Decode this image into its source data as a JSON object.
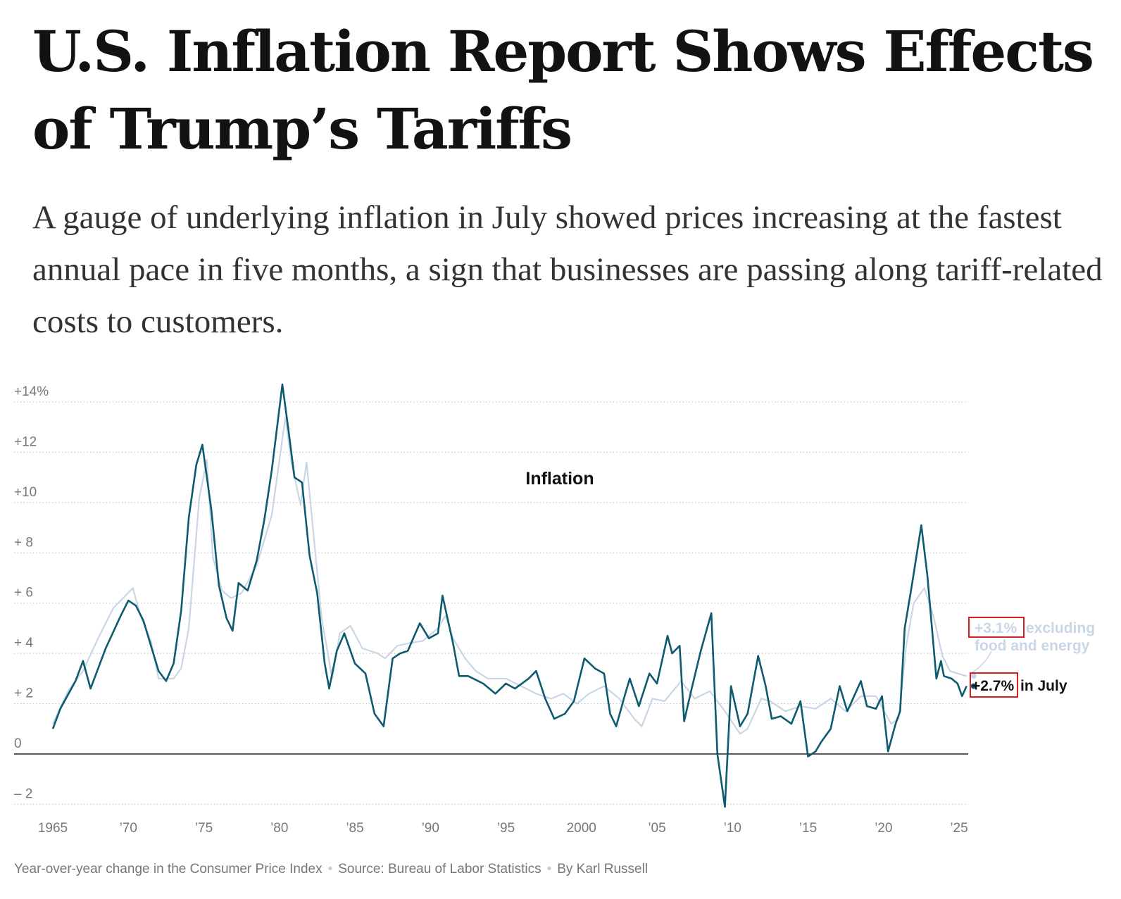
{
  "article": {
    "headline": "U.S. Inflation Report Shows Effects of Trump’s Tariffs",
    "dek": "A gauge of underlying inflation in July showed prices increasing at the fastest annual pace in five months, a sign that businesses are passing along tariff-related costs to customers."
  },
  "footer": {
    "description": "Year-over-year change in the Consumer Price Index",
    "source": "Source: Bureau of Labor Statistics",
    "byline": "By Karl Russell"
  },
  "chart_data": {
    "type": "line",
    "title": "Inflation",
    "ylim": [
      -2,
      14
    ],
    "xlim": [
      1965,
      2025.6
    ],
    "grid": true,
    "y_ticks": [
      {
        "value": 14,
        "label": "+14%"
      },
      {
        "value": 12,
        "label": "+12"
      },
      {
        "value": 10,
        "label": "+10"
      },
      {
        "value": 8,
        "label": "+ 8"
      },
      {
        "value": 6,
        "label": "+ 6"
      },
      {
        "value": 4,
        "label": "+ 4"
      },
      {
        "value": 2,
        "label": "+ 2"
      },
      {
        "value": 0,
        "label": "0"
      },
      {
        "value": -2,
        "label": "– 2"
      }
    ],
    "x_ticks": [
      {
        "value": 1965,
        "label": "1965"
      },
      {
        "value": 1970,
        "label": "’70"
      },
      {
        "value": 1975,
        "label": "’75"
      },
      {
        "value": 1980,
        "label": "’80"
      },
      {
        "value": 1985,
        "label": "’85"
      },
      {
        "value": 1990,
        "label": "’90"
      },
      {
        "value": 1995,
        "label": "’95"
      },
      {
        "value": 2000,
        "label": "2000"
      },
      {
        "value": 2005,
        "label": "’05"
      },
      {
        "value": 2010,
        "label": "’10"
      },
      {
        "value": 2015,
        "label": "’15"
      },
      {
        "value": 2020,
        "label": "’20"
      },
      {
        "value": 2025,
        "label": "’25"
      }
    ],
    "colors": {
      "headline": "#0e5a6e",
      "core": "#c9d6e6",
      "highlight_box": "#d62020"
    },
    "series": [
      {
        "key": "headline",
        "x": [
          1965.0,
          1965.5,
          1966.5,
          1967.0,
          1967.5,
          1968.5,
          1969.5,
          1970.0,
          1970.5,
          1971.0,
          1971.5,
          1972.0,
          1972.5,
          1973.0,
          1973.5,
          1974.0,
          1974.5,
          1974.9,
          1975.5,
          1976.0,
          1976.5,
          1976.9,
          1977.3,
          1977.9,
          1978.5,
          1979.0,
          1979.5,
          1980.2,
          1980.6,
          1981.0,
          1981.5,
          1982.0,
          1982.5,
          1983.0,
          1983.3,
          1983.8,
          1984.3,
          1985.0,
          1985.7,
          1986.3,
          1986.9,
          1987.5,
          1988.0,
          1988.5,
          1989.3,
          1989.9,
          1990.5,
          1990.8,
          1991.5,
          1991.9,
          1992.5,
          1993.5,
          1994.3,
          1995.0,
          1995.6,
          1996.5,
          1997.0,
          1997.6,
          1998.2,
          1998.9,
          1999.5,
          2000.2,
          2000.9,
          2001.5,
          2001.9,
          2002.3,
          2002.9,
          2003.2,
          2003.8,
          2004.5,
          2005.0,
          2005.7,
          2006.0,
          2006.5,
          2006.8,
          2007.3,
          2007.9,
          2008.6,
          2009.0,
          2009.5,
          2009.9,
          2010.5,
          2011.0,
          2011.7,
          2012.2,
          2012.6,
          2013.2,
          2013.9,
          2014.5,
          2015.0,
          2015.5,
          2015.9,
          2016.5,
          2017.1,
          2017.6,
          2018.5,
          2018.9,
          2019.5,
          2019.9,
          2020.3,
          2020.8,
          2021.1,
          2021.4,
          2021.9,
          2022.5,
          2022.9,
          2023.5,
          2023.8,
          2024.0,
          2024.5,
          2024.9,
          2025.2,
          2025.5
        ],
        "values": [
          1.0,
          1.8,
          2.9,
          3.7,
          2.6,
          4.2,
          5.5,
          6.1,
          5.9,
          5.3,
          4.3,
          3.3,
          2.9,
          3.6,
          5.7,
          9.4,
          11.5,
          12.3,
          9.7,
          6.7,
          5.4,
          4.9,
          6.8,
          6.5,
          7.7,
          9.3,
          11.3,
          14.7,
          12.9,
          11.0,
          10.8,
          7.9,
          6.4,
          3.6,
          2.6,
          4.1,
          4.8,
          3.6,
          3.2,
          1.6,
          1.1,
          3.8,
          4.0,
          4.1,
          5.2,
          4.6,
          4.8,
          6.3,
          4.4,
          3.1,
          3.1,
          2.8,
          2.4,
          2.8,
          2.6,
          3.0,
          3.3,
          2.2,
          1.4,
          1.6,
          2.1,
          3.8,
          3.4,
          3.2,
          1.6,
          1.1,
          2.4,
          3.0,
          1.9,
          3.2,
          2.8,
          4.7,
          4.0,
          4.3,
          1.3,
          2.6,
          4.1,
          5.6,
          0.0,
          -2.1,
          2.7,
          1.1,
          1.6,
          3.9,
          2.7,
          1.4,
          1.5,
          1.2,
          2.1,
          -0.1,
          0.1,
          0.5,
          1.0,
          2.7,
          1.7,
          2.9,
          1.9,
          1.8,
          2.3,
          0.1,
          1.2,
          1.7,
          5.0,
          6.8,
          9.1,
          7.1,
          3.0,
          3.7,
          3.1,
          3.0,
          2.8,
          2.3,
          2.7
        ],
        "label_value": "+2.7%",
        "label_text": "in July"
      },
      {
        "key": "core",
        "x": [
          1965.0,
          1966.0,
          1967.0,
          1968.0,
          1969.0,
          1970.3,
          1970.8,
          1971.5,
          1972.0,
          1973.0,
          1973.5,
          1974.0,
          1974.7,
          1975.2,
          1975.6,
          1976.2,
          1976.8,
          1977.5,
          1978.5,
          1979.5,
          1980.4,
          1980.8,
          1981.4,
          1981.8,
          1982.3,
          1982.8,
          1983.5,
          1984.0,
          1984.7,
          1985.5,
          1986.5,
          1987.0,
          1987.8,
          1988.5,
          1989.5,
          1990.5,
          1991.0,
          1991.5,
          1992.3,
          1993.0,
          1993.8,
          1995.0,
          1996.0,
          1997.0,
          1998.0,
          1998.8,
          1999.7,
          2000.5,
          2001.5,
          2002.5,
          2003.5,
          2004.0,
          2004.7,
          2005.5,
          2006.6,
          2007.5,
          2008.5,
          2009.5,
          2010.5,
          2011.0,
          2011.9,
          2012.5,
          2013.5,
          2014.5,
          2015.5,
          2016.5,
          2017.5,
          2018.5,
          2019.5,
          2020.5,
          2021.0,
          2021.5,
          2022.0,
          2022.7,
          2023.3,
          2023.9,
          2024.4,
          2024.9,
          2025.5
        ],
        "values": [
          1.2,
          2.5,
          3.3,
          4.6,
          5.8,
          6.6,
          5.5,
          4.5,
          3.0,
          3.0,
          3.4,
          5.0,
          10.2,
          11.7,
          7.8,
          6.5,
          6.2,
          6.4,
          7.5,
          9.5,
          13.4,
          11.6,
          9.9,
          11.6,
          8.5,
          5.4,
          3.0,
          4.8,
          5.1,
          4.2,
          4.0,
          3.8,
          4.3,
          4.4,
          4.5,
          5.0,
          5.5,
          4.6,
          3.8,
          3.3,
          3.0,
          3.0,
          2.7,
          2.4,
          2.2,
          2.4,
          2.0,
          2.4,
          2.7,
          2.2,
          1.4,
          1.1,
          2.2,
          2.1,
          2.9,
          2.2,
          2.5,
          1.7,
          0.8,
          1.0,
          2.2,
          2.1,
          1.7,
          1.9,
          1.8,
          2.2,
          1.7,
          2.3,
          2.3,
          1.2,
          1.4,
          4.3,
          6.0,
          6.6,
          5.5,
          3.9,
          3.3,
          3.2,
          3.1
        ],
        "label_value": "+3.1%",
        "label_text": "excluding",
        "label_text2": "food and energy"
      }
    ]
  }
}
